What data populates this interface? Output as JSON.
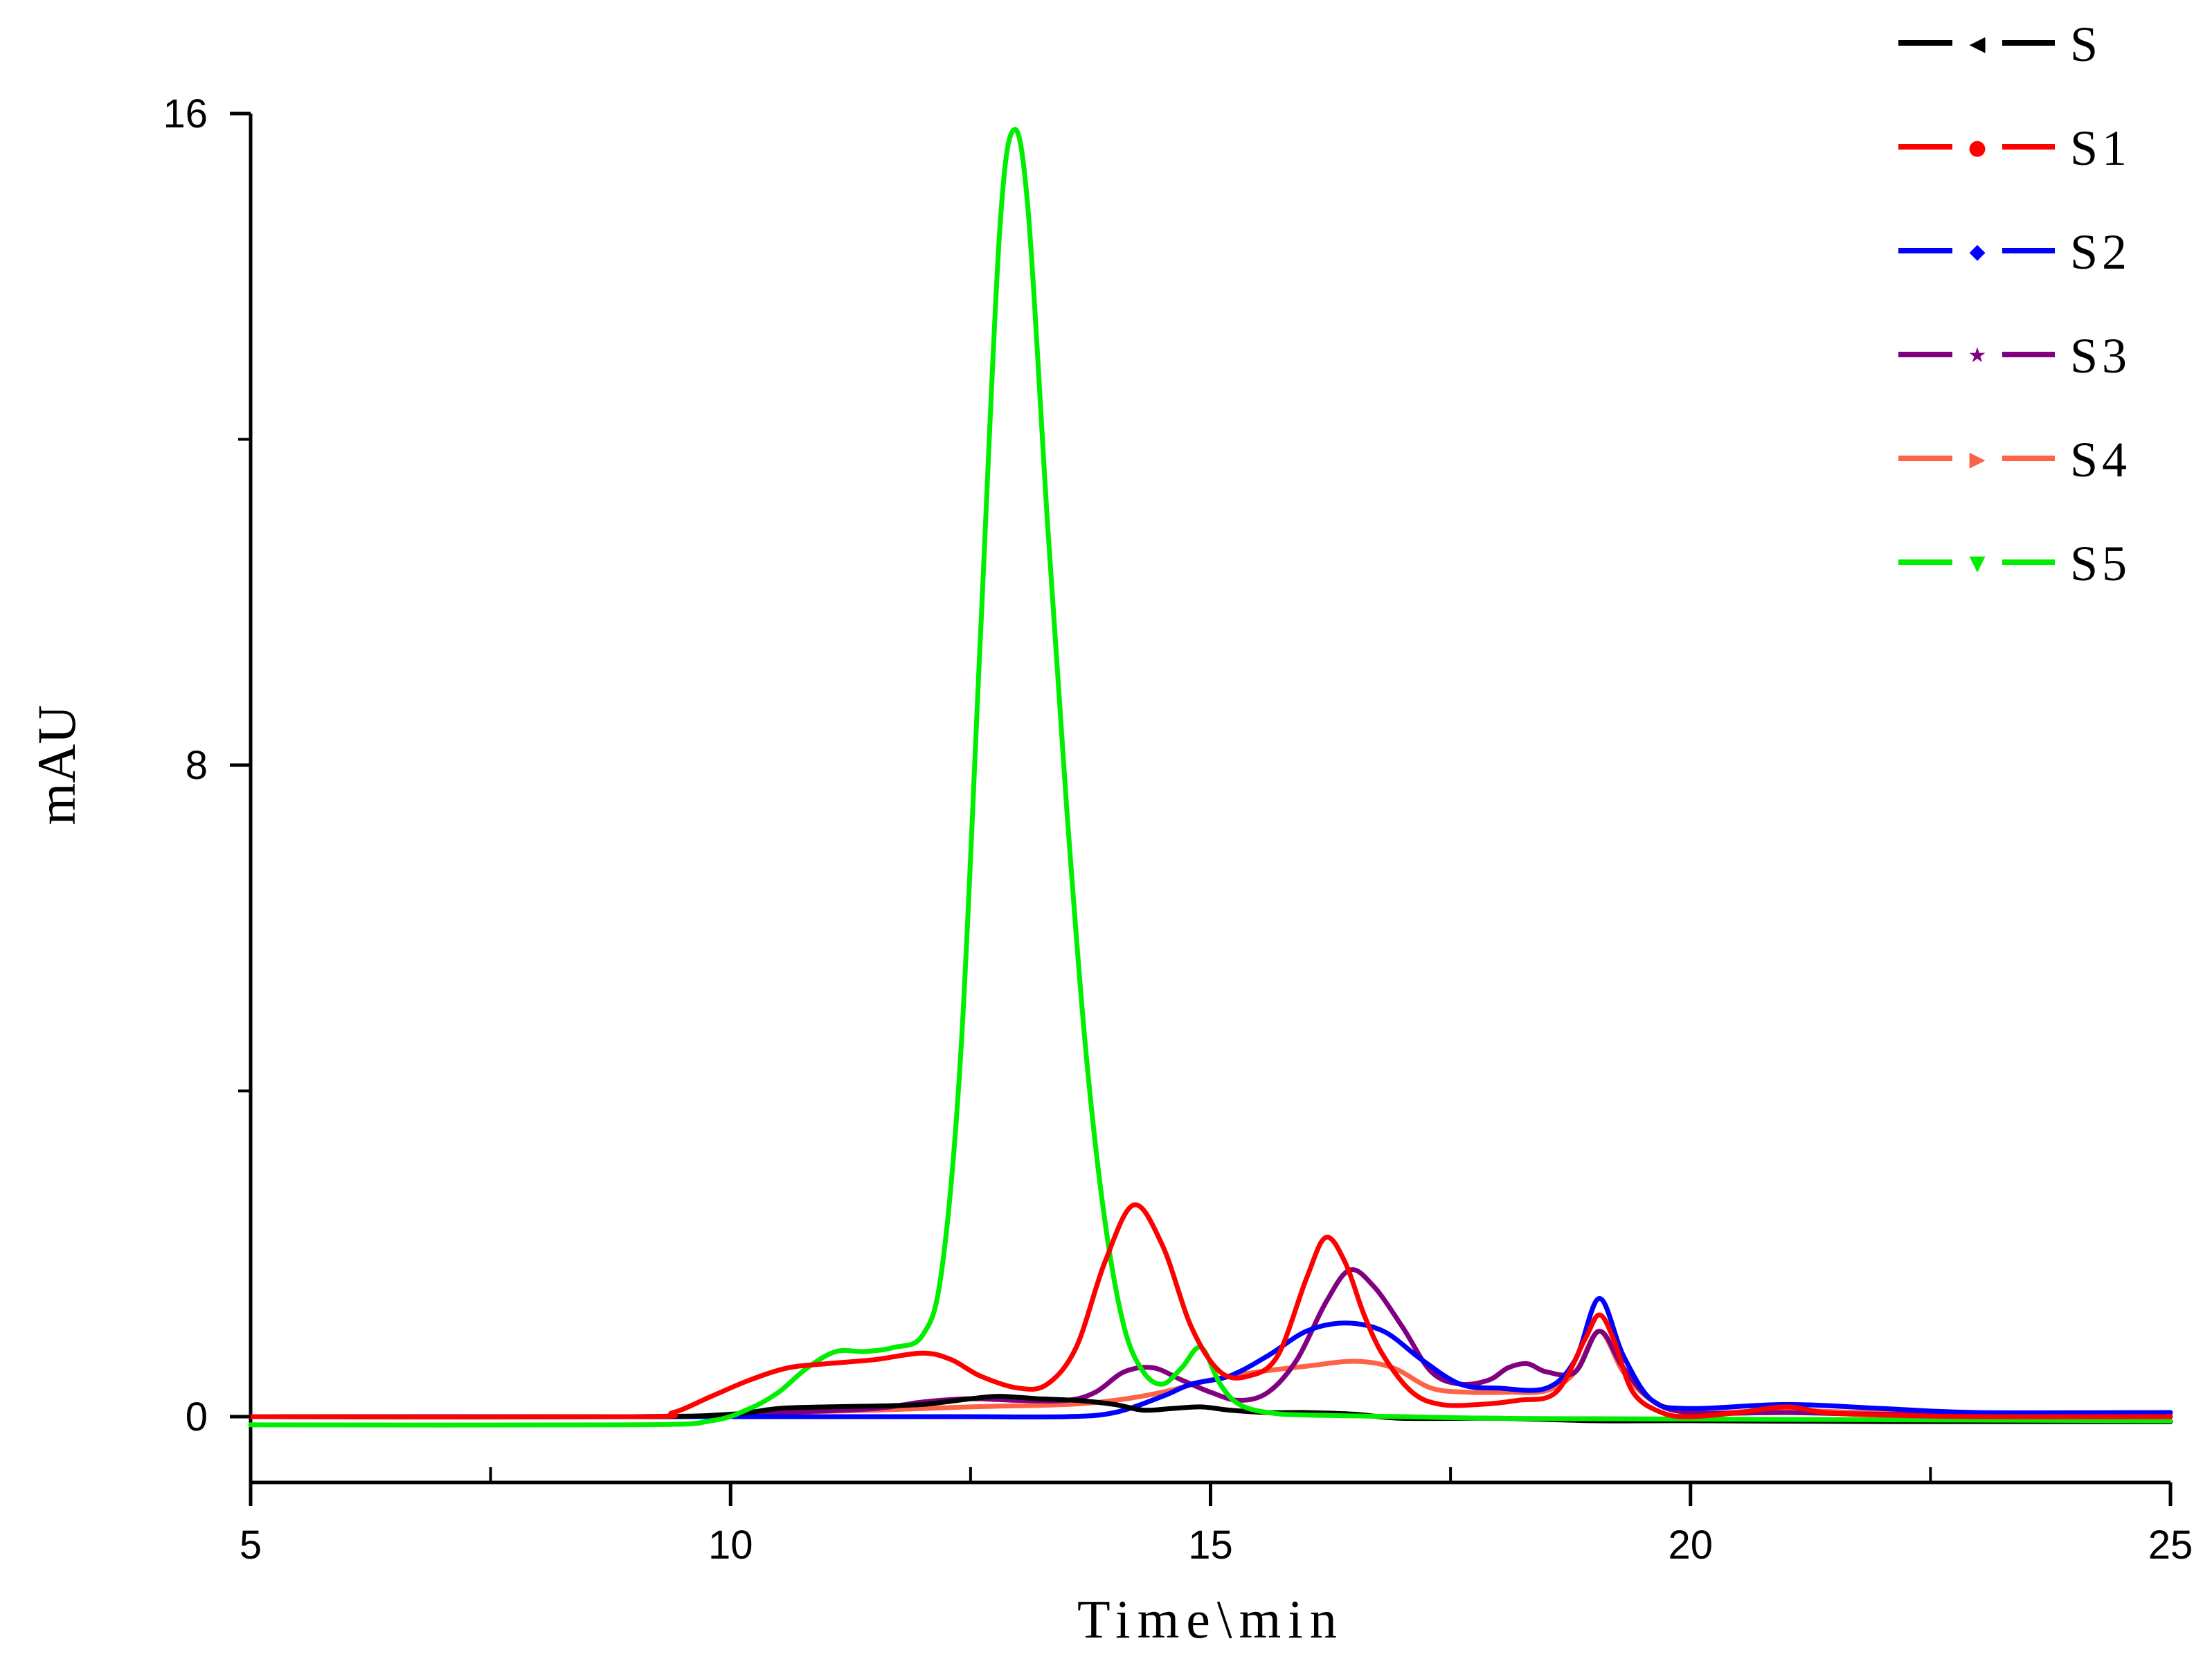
{
  "chart_data": {
    "type": "line",
    "xlabel": "Time\\min",
    "ylabel": "mAU",
    "xlim": [
      5,
      25
    ],
    "ylim": [
      -0.5,
      16
    ],
    "x_ticks": [
      5,
      10,
      15,
      20,
      25
    ],
    "x_minor_ticks": [
      7.5,
      12.5,
      17.5,
      22.5
    ],
    "y_ticks": [
      0,
      8,
      16
    ],
    "y_minor_ticks": [
      4,
      12
    ],
    "grid": false,
    "legend_position": "top-right",
    "series": [
      {
        "name": "S",
        "color": "#000000",
        "marker": "◀",
        "x": [
          5,
          9,
          10,
          10.5,
          11,
          11.5,
          12,
          12.5,
          12.8,
          13.2,
          13.6,
          14,
          14.3,
          14.6,
          14.9,
          15.2,
          15.6,
          16,
          16.5,
          17,
          18,
          19,
          20,
          22,
          25
        ],
        "y": [
          0,
          0,
          0.03,
          0.1,
          0.12,
          0.13,
          0.15,
          0.22,
          0.25,
          0.22,
          0.2,
          0.15,
          0.08,
          0.1,
          0.12,
          0.08,
          0.05,
          0.05,
          0.03,
          -0.02,
          -0.02,
          -0.05,
          -0.05,
          -0.06,
          -0.06
        ]
      },
      {
        "name": "S1",
        "color": "#ff0000",
        "marker": "●",
        "x": [
          5,
          9,
          9.4,
          9.8,
          10.2,
          10.6,
          11,
          11.5,
          12,
          12.3,
          12.6,
          13,
          13.3,
          13.6,
          13.9,
          14.2,
          14.5,
          14.8,
          15.1,
          15.4,
          15.7,
          16,
          16.2,
          16.4,
          16.6,
          16.8,
          17.1,
          17.4,
          17.8,
          18.2,
          18.6,
          18.9,
          19.05,
          19.2,
          19.4,
          19.7,
          20,
          20.5,
          21,
          21.4,
          22,
          23,
          25
        ],
        "y": [
          0,
          0,
          0.05,
          0.25,
          0.45,
          0.6,
          0.65,
          0.7,
          0.78,
          0.7,
          0.5,
          0.35,
          0.4,
          0.85,
          1.9,
          2.6,
          2.1,
          1.1,
          0.55,
          0.5,
          0.75,
          1.7,
          2.2,
          1.9,
          1.25,
          0.75,
          0.3,
          0.15,
          0.15,
          0.2,
          0.3,
          0.95,
          1.25,
          0.95,
          0.3,
          0.05,
          0,
          0.05,
          0.12,
          0.05,
          0.02,
          0,
          0
        ]
      },
      {
        "name": "S2",
        "color": "#0000ff",
        "marker": "◆",
        "x": [
          5,
          9.5,
          10.5,
          11.5,
          12.5,
          13.5,
          14,
          14.5,
          14.8,
          15.2,
          15.6,
          16,
          16.4,
          16.8,
          17.2,
          17.6,
          18,
          18.5,
          18.8,
          19.05,
          19.3,
          19.6,
          20,
          21,
          22,
          23,
          25
        ],
        "y": [
          0,
          0,
          0,
          0,
          0,
          0,
          0.05,
          0.25,
          0.4,
          0.5,
          0.75,
          1.05,
          1.15,
          1.05,
          0.7,
          0.4,
          0.35,
          0.35,
          0.7,
          1.45,
          0.75,
          0.2,
          0.1,
          0.15,
          0.1,
          0.05,
          0.05
        ]
      },
      {
        "name": "S3",
        "color": "#800080",
        "marker": "★",
        "x": [
          5,
          9.5,
          10.5,
          11.5,
          12,
          12.5,
          13,
          13.5,
          13.8,
          14.1,
          14.4,
          14.7,
          15,
          15.3,
          15.6,
          15.9,
          16.2,
          16.45,
          16.7,
          17,
          17.3,
          17.6,
          17.9,
          18.1,
          18.3,
          18.5,
          18.8,
          19.05,
          19.3,
          19.6,
          20,
          21,
          22,
          25
        ],
        "y": [
          0,
          0,
          0.05,
          0.1,
          0.18,
          0.22,
          0.2,
          0.2,
          0.3,
          0.55,
          0.6,
          0.45,
          0.3,
          0.2,
          0.3,
          0.7,
          1.4,
          1.8,
          1.6,
          1.1,
          0.55,
          0.4,
          0.45,
          0.6,
          0.65,
          0.55,
          0.55,
          1.05,
          0.6,
          0.2,
          0.05,
          0.05,
          0.03,
          0
        ]
      },
      {
        "name": "S4",
        "color": "#ff6347",
        "marker": "▶",
        "x": [
          5,
          9.5,
          10.5,
          11.5,
          12.5,
          13.5,
          14,
          14.5,
          15,
          15.5,
          16,
          16.5,
          16.9,
          17.3,
          17.7,
          18.1,
          18.5,
          18.8,
          19.05,
          19.3,
          19.6,
          20,
          21,
          22,
          25
        ],
        "y": [
          0,
          0,
          0.05,
          0.08,
          0.12,
          0.15,
          0.2,
          0.3,
          0.45,
          0.55,
          0.62,
          0.68,
          0.6,
          0.35,
          0.3,
          0.3,
          0.32,
          0.55,
          1.05,
          0.55,
          0.2,
          0.05,
          0.08,
          0.05,
          0.05
        ]
      },
      {
        "name": "S5",
        "color": "#00ee00",
        "marker": "▼",
        "x": [
          5,
          9,
          9.8,
          10.2,
          10.5,
          10.8,
          11.1,
          11.4,
          11.7,
          12,
          12.2,
          12.4,
          12.6,
          12.8,
          12.95,
          13.1,
          13.3,
          13.5,
          13.7,
          13.9,
          14.1,
          14.3,
          14.5,
          14.7,
          14.9,
          15.1,
          15.3,
          15.6,
          16,
          17,
          18,
          20,
          25
        ],
        "y": [
          -0.1,
          -0.1,
          -0.05,
          0.1,
          0.3,
          0.6,
          0.8,
          0.8,
          0.85,
          1.0,
          1.8,
          4.5,
          9.5,
          14.5,
          15.8,
          14.8,
          11.0,
          7.5,
          4.5,
          2.4,
          1.1,
          0.55,
          0.4,
          0.6,
          0.85,
          0.4,
          0.15,
          0.05,
          0.02,
          0,
          -0.02,
          -0.03,
          -0.05
        ]
      }
    ]
  }
}
